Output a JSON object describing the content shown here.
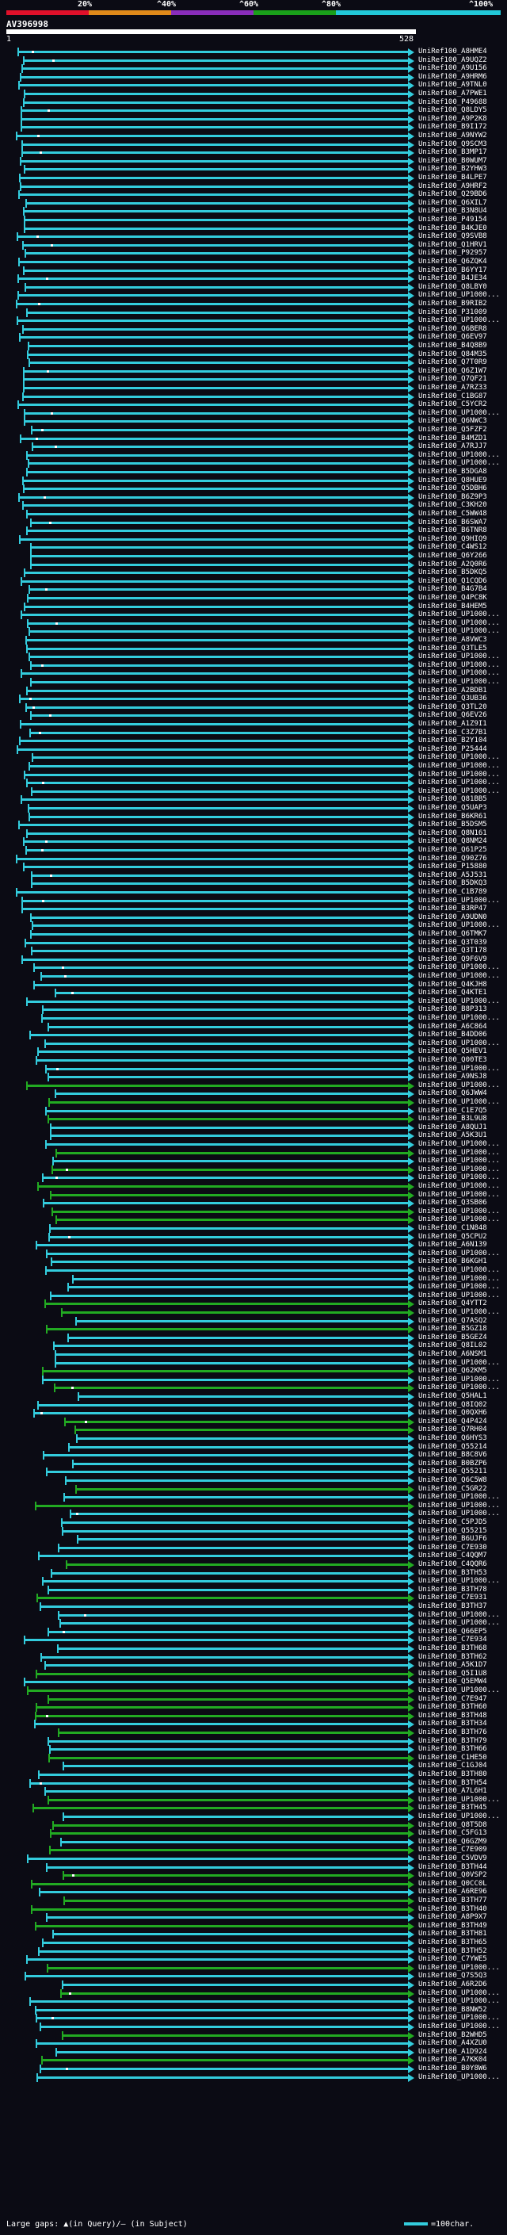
{
  "scale": {
    "ticks": [
      "20%",
      "^40%",
      "^60%",
      "^80%",
      "^100%"
    ],
    "colors": [
      "#e0102a",
      "#e08a1a",
      "#8a2dbb",
      "#1aa01a",
      "#22c8d8"
    ]
  },
  "query": {
    "title": "AV396998",
    "start": "1",
    "end": "528"
  },
  "hits": [
    "UniRef100_A8HME4",
    "UniRef100_A9UQZ2",
    "UniRef100_A9U156",
    "UniRef100_A9HRM6",
    "UniRef100_A9TNL0",
    "UniRef100_A7PWE1",
    "UniRef100_P49688",
    "UniRef100_Q8LDY5",
    "UniRef100_A9P2K8",
    "UniRef100_B9I172",
    "UniRef100_A9NYW2",
    "UniRef100_Q9SCM3",
    "UniRef100_B3MP17",
    "UniRef100_B0WUM7",
    "UniRef100_B2YHW3",
    "UniRef100_B4LPE7",
    "UniRef100_A9HRF2",
    "UniRef100_Q29BD6",
    "UniRef100_Q6XIL7",
    "UniRef100_B3N8U4",
    "UniRef100_P49154",
    "UniRef100_B4KJE0",
    "UniRef100_Q9SVB8",
    "UniRef100_Q1HRV1",
    "UniRef100_P92957",
    "UniRef100_Q6ZQK4",
    "UniRef100_B6YY17",
    "UniRef100_B4JE34",
    "UniRef100_Q8LBY0",
    "UniRef100_UP1000...",
    "UniRef100_B9RIB2",
    "UniRef100_P31009",
    "UniRef100_UP1000...",
    "UniRef100_Q6BER8",
    "UniRef100_Q6EV97",
    "UniRef100_B4Q8B9",
    "UniRef100_Q84M35",
    "UniRef100_Q7T0R9",
    "UniRef100_Q6Z1W7",
    "UniRef100_Q7QF21",
    "UniRef100_A7RZ33",
    "UniRef100_C1BG87",
    "UniRef100_C5YCR2",
    "UniRef100_UP1000...",
    "UniRef100_Q6NWC3",
    "UniRef100_Q5FZF2",
    "UniRef100_B4MZD1",
    "UniRef100_A7RJJ7",
    "UniRef100_UP1000...",
    "UniRef100_UP1000...",
    "UniRef100_B5DGA8",
    "UniRef100_Q8HUE9",
    "UniRef100_Q5DBH6",
    "UniRef100_B6Z9P3",
    "UniRef100_C3KH20",
    "UniRef100_C5WW48",
    "UniRef100_B6SWA7",
    "UniRef100_B6TNR8",
    "UniRef100_Q9HIQ9",
    "UniRef100_C4WS12",
    "UniRef100_Q6Y266",
    "UniRef100_A2Q0R6",
    "UniRef100_B5DKQ5",
    "UniRef100_Q1CQD6",
    "UniRef100_B4G7B4",
    "UniRef100_Q4PC8K",
    "UniRef100_B4HEM5",
    "UniRef100_UP1000...",
    "UniRef100_UP1000...",
    "UniRef100_UP1000...",
    "UniRef100_A8VWC3",
    "UniRef100_Q3TLE5",
    "UniRef100_UP1000...",
    "UniRef100_UP1000...",
    "UniRef100_UP1000...",
    "UniRef100_UP1000...",
    "UniRef100_A2BDB1",
    "UniRef100_Q3UB36",
    "UniRef100_Q3TL20",
    "UniRef100_Q6EV26",
    "UniRef100_A1Z9I1",
    "UniRef100_C3Z7B1",
    "UniRef100_B2Y104",
    "UniRef100_P25444",
    "UniRef100_UP1000...",
    "UniRef100_UP1000...",
    "UniRef100_UP1000...",
    "UniRef100_UP1000...",
    "UniRef100_UP1000...",
    "UniRef100_Q81BB5",
    "UniRef100_Q5UAP3",
    "UniRef100_B6KR61",
    "UniRef100_B5DSM5",
    "UniRef100_Q8N161",
    "UniRef100_Q8NM24",
    "UniRef100_Q61P25",
    "UniRef100_Q90Z76",
    "UniRef100_P15880",
    "UniRef100_A5J531",
    "UniRef100_B5DKQ3",
    "UniRef100_C1B789",
    "UniRef100_UP1000...",
    "UniRef100_B3RP47",
    "UniRef100_A9UDN0",
    "UniRef100_UP1000...",
    "UniRef100_Q6TMK7",
    "UniRef100_Q3T039",
    "UniRef100_Q3T178",
    "UniRef100_Q9F6V9",
    "UniRef100_UP1000...",
    "UniRef100_UP1000...",
    "UniRef100_Q4KJH8",
    "UniRef100_Q4KTE1",
    "UniRef100_UP1000...",
    "UniRef100_B8P313",
    "UniRef100_UP1000...",
    "UniRef100_A6C864",
    "UniRef100_B4DD06",
    "UniRef100_UP1000...",
    "UniRef100_Q5HEV1",
    "UniRef100_Q00TE3",
    "UniRef100_UP1000...",
    "UniRef100_A9NSJ8",
    "UniRef100_UP1000...",
    "UniRef100_Q6JWW4",
    "UniRef100_UP1000...",
    "UniRef100_C1E7Q5",
    "UniRef100_B3L9U8",
    "UniRef100_A8QUJ1",
    "UniRef100_A5K3U1",
    "UniRef100_UP1000...",
    "UniRef100_UP1000...",
    "UniRef100_UP1000...",
    "UniRef100_UP1000...",
    "UniRef100_UP1000...",
    "UniRef100_UP1000...",
    "UniRef100_UP1000...",
    "UniRef100_Q3SB06",
    "UniRef100_UP1000...",
    "UniRef100_UP1000...",
    "UniRef100_C1N848",
    "UniRef100_Q5CPU2",
    "UniRef100_A6N139",
    "UniRef100_UP1000...",
    "UniRef100_B6KGH1",
    "UniRef100_UP1000...",
    "UniRef100_UP1000...",
    "UniRef100_UP1000...",
    "UniRef100_UP1000...",
    "UniRef100_Q4YTT2",
    "UniRef100_UP1000...",
    "UniRef100_Q7ASQ2",
    "UniRef100_B5GZ18",
    "UniRef100_B5GEZ4",
    "UniRef100_Q8IL02",
    "UniRef100_A6NSM1",
    "UniRef100_UP1000...",
    "UniRef100_Q62KM5",
    "UniRef100_UP1000...",
    "UniRef100_UP1000...",
    "UniRef100_Q5HAL1",
    "UniRef100_Q8IQ02",
    "UniRef100_Q0QXH6",
    "UniRef100_Q4P424",
    "UniRef100_Q7RH04",
    "UniRef100_Q6HYS3",
    "UniRef100_Q55214",
    "UniRef100_B8C8V6",
    "UniRef100_B0BZP6",
    "UniRef100_Q55211",
    "UniRef100_Q6C5W8",
    "UniRef100_C5GR22",
    "UniRef100_UP1000...",
    "UniRef100_UP1000...",
    "UniRef100_UP1000...",
    "UniRef100_C5PJD5",
    "UniRef100_Q55215",
    "UniRef100_B6UJF6",
    "UniRef100_C7E930",
    "UniRef100_C4QQM7",
    "UniRef100_C4QQR6",
    "UniRef100_B3TH53",
    "UniRef100_UP1000...",
    "UniRef100_B3TH78",
    "UniRef100_C7E931",
    "UniRef100_B3TH37",
    "UniRef100_UP1000...",
    "UniRef100_UP1000...",
    "UniRef100_Q66EP5",
    "UniRef100_C7E934",
    "UniRef100_B3TH68",
    "UniRef100_B3TH62",
    "UniRef100_A5K1D7",
    "UniRef100_Q5I1U8",
    "UniRef100_Q5EMW4",
    "UniRef100_UP1000...",
    "UniRef100_C7E947",
    "UniRef100_B3TH60",
    "UniRef100_B3TH48",
    "UniRef100_B3TH34",
    "UniRef100_B3TH76",
    "UniRef100_B3TH79",
    "UniRef100_B3TH66",
    "UniRef100_C1HE50",
    "UniRef100_C1GJ04",
    "UniRef100_B3TH80",
    "UniRef100_B3TH54",
    "UniRef100_A7L6H1",
    "UniRef100_UP1000...",
    "UniRef100_B3TH45",
    "UniRef100_UP1000...",
    "UniRef100_Q8T5D8",
    "UniRef100_C5FG13",
    "UniRef100_Q6GZM9",
    "UniRef100_C7E909",
    "UniRef100_C5VDV9",
    "UniRef100_B3TH44",
    "UniRef100_Q0VSP2",
    "UniRef100_Q0CC0L",
    "UniRef100_A6RE96",
    "UniRef100_B3TH77",
    "UniRef100_B3TH40",
    "UniRef100_A8P9X7",
    "UniRef100_B3TH49",
    "UniRef100_B3TH81",
    "UniRef100_B3TH65",
    "UniRef100_B3TH52",
    "UniRef100_C7YWE5",
    "UniRef100_UP1000...",
    "UniRef100_Q7S5Q3",
    "UniRef100_A6R2D6",
    "UniRef100_UP1000...",
    "UniRef100_UP1000...",
    "UniRef100_B8NW52",
    "UniRef100_UP1000...",
    "UniRef100_UP1000...",
    "UniRef100_B2WHD5",
    "UniRef100_A4XZU0",
    "UniRef100_A1D924",
    "UniRef100_A7KK04",
    "UniRef100_B0Y8W6",
    "UniRef100_UP1000..."
  ],
  "legend": {
    "gaps": "Large gaps: ▲(in Query)/— (in Subject)",
    "scale_label": "=100char."
  }
}
